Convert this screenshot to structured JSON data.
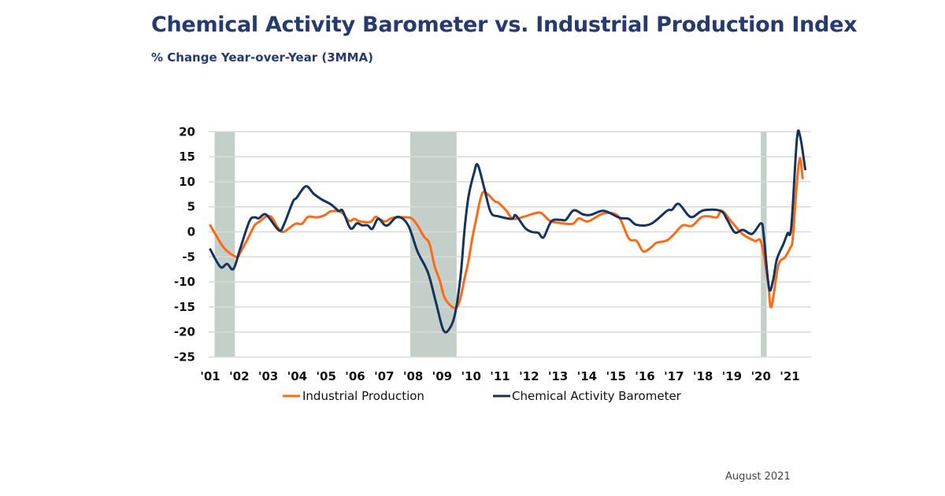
{
  "header": {
    "title": "Chemical Activity Barometer vs. Industrial Production Index",
    "subtitle": "% Change Year-over-Year (3MMA)"
  },
  "footer": {
    "date": "August 2021"
  },
  "chart_data": {
    "type": "line",
    "title": "Chemical Activity Barometer vs. Industrial Production Index",
    "subtitle": "% Change Year-over-Year (3MMA)",
    "xlabel": "",
    "ylabel": "",
    "ylim": [
      -25,
      20
    ],
    "yticks": [
      20,
      15,
      10,
      5,
      0,
      -5,
      -10,
      -15,
      -20,
      -25
    ],
    "ytick_labels": [
      "20",
      "15",
      "10",
      "5",
      "0",
      "-5",
      "-10",
      "-15",
      "-20",
      "-25"
    ],
    "xlim": [
      2001,
      2021.8
    ],
    "xticks": [
      2001,
      2002,
      2003,
      2004,
      2005,
      2006,
      2007,
      2008,
      2009,
      2010,
      2011,
      2012,
      2013,
      2014,
      2015,
      2016,
      2017,
      2018,
      2019,
      2020,
      2021
    ],
    "xtick_labels": [
      "'01",
      "'02",
      "'03",
      "'04",
      "'05",
      "'06",
      "'07",
      "'08",
      "'09",
      "'10",
      "'11",
      "'12",
      "'13",
      "'14",
      "'15",
      "'16",
      "'17",
      "'18",
      "'19",
      "'20",
      "'21"
    ],
    "grid": "horizontal",
    "legend": "bottom",
    "recessions": [
      [
        2001.15,
        2001.85
      ],
      [
        2007.9,
        2009.5
      ],
      [
        2020.0,
        2020.2
      ]
    ],
    "recession_color": "#c5cfca",
    "series": [
      {
        "name": "Industrial Production",
        "color": "#ff6a13",
        "points": [
          [
            2001.0,
            1.3
          ],
          [
            2001.18,
            -0.5
          ],
          [
            2001.5,
            -3.4
          ],
          [
            2001.9,
            -5.0
          ],
          [
            2002.03,
            -4.2
          ],
          [
            2002.3,
            -1.3
          ],
          [
            2002.53,
            1.3
          ],
          [
            2002.71,
            2.1
          ],
          [
            2002.94,
            3.1
          ],
          [
            2003.12,
            2.9
          ],
          [
            2003.34,
            0.8
          ],
          [
            2003.53,
            0
          ],
          [
            2003.93,
            1.6
          ],
          [
            2004.16,
            1.6
          ],
          [
            2004.38,
            3.0
          ],
          [
            2004.7,
            2.9
          ],
          [
            2004.97,
            3.4
          ],
          [
            2005.16,
            4.1
          ],
          [
            2005.52,
            3.9
          ],
          [
            2005.79,
            2.2
          ],
          [
            2005.97,
            2.6
          ],
          [
            2006.15,
            2.1
          ],
          [
            2006.52,
            2.0
          ],
          [
            2006.7,
            3.0
          ],
          [
            2006.88,
            2.4
          ],
          [
            2007.06,
            2.1
          ],
          [
            2007.29,
            2.8
          ],
          [
            2007.79,
            2.9
          ],
          [
            2007.97,
            2.6
          ],
          [
            2008.15,
            1.3
          ],
          [
            2008.38,
            -1.0
          ],
          [
            2008.56,
            -2.3
          ],
          [
            2008.74,
            -6.8
          ],
          [
            2008.92,
            -9.7
          ],
          [
            2009.1,
            -13.3
          ],
          [
            2009.42,
            -15.2
          ],
          [
            2009.6,
            -13.9
          ],
          [
            2009.78,
            -9.2
          ],
          [
            2009.91,
            -5.8
          ],
          [
            2010.05,
            -1.0
          ],
          [
            2010.19,
            2.9
          ],
          [
            2010.32,
            6.5
          ],
          [
            2010.46,
            8.0
          ],
          [
            2010.82,
            6.1
          ],
          [
            2010.95,
            5.8
          ],
          [
            2011.22,
            4.2
          ],
          [
            2011.45,
            2.6
          ],
          [
            2011.86,
            3.1
          ],
          [
            2012.13,
            3.6
          ],
          [
            2012.41,
            3.8
          ],
          [
            2012.72,
            2.2
          ],
          [
            2013.04,
            1.8
          ],
          [
            2013.5,
            1.6
          ],
          [
            2013.72,
            2.7
          ],
          [
            2014.04,
            2.1
          ],
          [
            2014.58,
            3.7
          ],
          [
            2015.08,
            3.1
          ],
          [
            2015.44,
            -1.3
          ],
          [
            2015.71,
            -1.8
          ],
          [
            2015.94,
            -3.9
          ],
          [
            2016.21,
            -3.1
          ],
          [
            2016.39,
            -2.2
          ],
          [
            2016.76,
            -1.7
          ],
          [
            2017.03,
            -0.3
          ],
          [
            2017.3,
            1.3
          ],
          [
            2017.62,
            1.2
          ],
          [
            2017.94,
            2.9
          ],
          [
            2018.21,
            3.1
          ],
          [
            2018.48,
            2.9
          ],
          [
            2018.66,
            4.2
          ],
          [
            2019.02,
            1.8
          ],
          [
            2019.38,
            -0.5
          ],
          [
            2019.79,
            -1.8
          ],
          [
            2020.01,
            -2.1
          ],
          [
            2020.24,
            -9.7
          ],
          [
            2020.36,
            -15.0
          ],
          [
            2020.6,
            -6.7
          ],
          [
            2020.83,
            -5.1
          ],
          [
            2021.01,
            -3.2
          ],
          [
            2021.1,
            -1.3
          ],
          [
            2021.24,
            9.7
          ],
          [
            2021.35,
            14.7
          ],
          [
            2021.44,
            10.7
          ]
        ]
      },
      {
        "name": "Chemical Activity Barometer",
        "color": "#14335e",
        "points": [
          [
            2001.0,
            -3.5
          ],
          [
            2001.35,
            -7.0
          ],
          [
            2001.58,
            -6.4
          ],
          [
            2001.8,
            -7.4
          ],
          [
            2002.03,
            -3.4
          ],
          [
            2002.35,
            2.1
          ],
          [
            2002.53,
            2.9
          ],
          [
            2002.67,
            2.7
          ],
          [
            2002.85,
            3.5
          ],
          [
            2002.99,
            3.1
          ],
          [
            2003.37,
            0.3
          ],
          [
            2003.53,
            1.3
          ],
          [
            2003.85,
            6.0
          ],
          [
            2003.98,
            6.8
          ],
          [
            2004.3,
            9.1
          ],
          [
            2004.57,
            7.6
          ],
          [
            2004.84,
            6.5
          ],
          [
            2005.16,
            5.5
          ],
          [
            2005.43,
            4.2
          ],
          [
            2005.57,
            4.2
          ],
          [
            2005.84,
            0.7
          ],
          [
            2006.06,
            1.7
          ],
          [
            2006.24,
            1.3
          ],
          [
            2006.43,
            1.3
          ],
          [
            2006.59,
            0.6
          ],
          [
            2006.79,
            2.6
          ],
          [
            2007.01,
            1.4
          ],
          [
            2007.15,
            1.4
          ],
          [
            2007.47,
            3.0
          ],
          [
            2007.83,
            1.3
          ],
          [
            2008.15,
            -3.9
          ],
          [
            2008.51,
            -8.1
          ],
          [
            2008.78,
            -13.9
          ],
          [
            2009.05,
            -19.7
          ],
          [
            2009.28,
            -19.1
          ],
          [
            2009.46,
            -16.0
          ],
          [
            2009.64,
            -8.7
          ],
          [
            2009.78,
            0.8
          ],
          [
            2009.91,
            7.0
          ],
          [
            2010.1,
            11.7
          ],
          [
            2010.23,
            13.4
          ],
          [
            2010.46,
            8.6
          ],
          [
            2010.68,
            3.9
          ],
          [
            2010.95,
            3.1
          ],
          [
            2011.41,
            2.6
          ],
          [
            2011.54,
            3.3
          ],
          [
            2011.86,
            0.8
          ],
          [
            2012.09,
            0
          ],
          [
            2012.32,
            -0.2
          ],
          [
            2012.5,
            -1.1
          ],
          [
            2012.77,
            2.1
          ],
          [
            2013.09,
            2.4
          ],
          [
            2013.27,
            2.4
          ],
          [
            2013.54,
            4.3
          ],
          [
            2013.86,
            3.5
          ],
          [
            2014.13,
            3.4
          ],
          [
            2014.58,
            4.2
          ],
          [
            2015.13,
            2.8
          ],
          [
            2015.44,
            2.6
          ],
          [
            2015.71,
            1.4
          ],
          [
            2016.21,
            1.6
          ],
          [
            2016.76,
            4.2
          ],
          [
            2016.93,
            4.4
          ],
          [
            2017.16,
            5.6
          ],
          [
            2017.48,
            3.4
          ],
          [
            2017.66,
            3.0
          ],
          [
            2018.02,
            4.3
          ],
          [
            2018.61,
            4.2
          ],
          [
            2018.84,
            2.4
          ],
          [
            2019.1,
            -0.1
          ],
          [
            2019.38,
            0.4
          ],
          [
            2019.7,
            -0.4
          ],
          [
            2020.01,
            1.7
          ],
          [
            2020.1,
            -0.8
          ],
          [
            2020.28,
            -11.2
          ],
          [
            2020.42,
            -9.7
          ],
          [
            2020.55,
            -5.5
          ],
          [
            2020.78,
            -2.4
          ],
          [
            2020.92,
            -0.3
          ],
          [
            2021.05,
            1.0
          ],
          [
            2021.24,
            18.3
          ],
          [
            2021.35,
            19.2
          ],
          [
            2021.53,
            12.5
          ]
        ]
      }
    ]
  }
}
